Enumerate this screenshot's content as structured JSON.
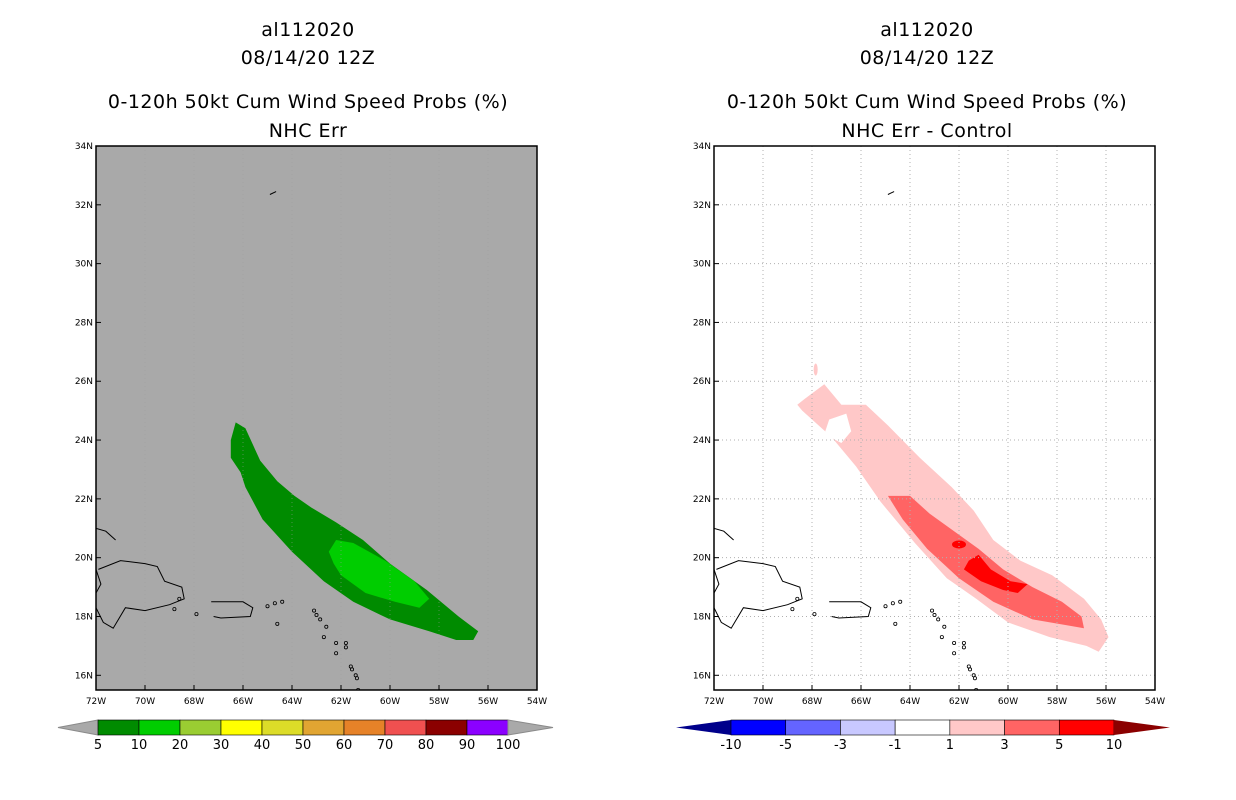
{
  "chart_data": [
    {
      "type": "heatmap",
      "storm_id": "al112020",
      "datetime": "08/14/20 12Z",
      "title": "0-120h 50kt Cum Wind Speed Probs (%)",
      "subtitle": "NHC Err",
      "background": "#a9a9a9",
      "grid": false,
      "lon_range": [
        -72,
        -54
      ],
      "lat_range": [
        15.5,
        34
      ],
      "x_ticks": [
        "72W",
        "70W",
        "68W",
        "66W",
        "64W",
        "62W",
        "60W",
        "58W",
        "56W",
        "54W"
      ],
      "y_ticks": [
        "16N",
        "18N",
        "20N",
        "22N",
        "24N",
        "26N",
        "28N",
        "30N",
        "32N",
        "34N"
      ],
      "contour_levels": [
        5,
        10,
        20,
        30,
        40,
        50,
        60,
        70,
        80,
        90,
        100
      ],
      "colorbar_labels": [
        "5",
        "10",
        "20",
        "30",
        "40",
        "50",
        "60",
        "70",
        "80",
        "90",
        "100"
      ],
      "colorbar_colors": [
        "#008b00",
        "#00cd00",
        "#9acd32",
        "#ffff00",
        "#dcdc28",
        "#e1a532",
        "#e68228",
        "#f05050",
        "#8b0000",
        "#8b00ff"
      ],
      "contours": [
        {
          "level": 5,
          "color": "#008b00",
          "lonlat": [
            [
              -66.3,
              24.6
            ],
            [
              -65.9,
              24.4
            ],
            [
              -65.3,
              23.3
            ],
            [
              -64.6,
              22.6
            ],
            [
              -63.9,
              22.1
            ],
            [
              -63.2,
              21.7
            ],
            [
              -62.2,
              21.2
            ],
            [
              -61.1,
              20.6
            ],
            [
              -60.0,
              19.8
            ],
            [
              -58.5,
              18.9
            ],
            [
              -57.2,
              18.0
            ],
            [
              -56.4,
              17.5
            ],
            [
              -56.6,
              17.2
            ],
            [
              -57.3,
              17.2
            ],
            [
              -58.4,
              17.5
            ],
            [
              -60.0,
              17.9
            ],
            [
              -61.5,
              18.5
            ],
            [
              -62.7,
              19.2
            ],
            [
              -64.0,
              20.2
            ],
            [
              -65.2,
              21.3
            ],
            [
              -65.9,
              22.4
            ],
            [
              -66.1,
              22.9
            ],
            [
              -66.5,
              23.4
            ],
            [
              -66.5,
              24.0
            ]
          ]
        },
        {
          "level": 10,
          "color": "#00cd00",
          "lonlat": [
            [
              -62.2,
              20.6
            ],
            [
              -61.5,
              20.5
            ],
            [
              -60.2,
              19.9
            ],
            [
              -59.0,
              19.2
            ],
            [
              -58.4,
              18.6
            ],
            [
              -58.8,
              18.3
            ],
            [
              -59.8,
              18.5
            ],
            [
              -61.0,
              18.8
            ],
            [
              -62.0,
              19.4
            ],
            [
              -62.3,
              19.8
            ],
            [
              -62.5,
              20.2
            ]
          ]
        }
      ],
      "land": "Hispaniola, Puerto Rico, Virgin Islands, Lesser Antilles, Bermuda (outlined)"
    },
    {
      "type": "heatmap",
      "storm_id": "al112020",
      "datetime": "08/14/20 12Z",
      "title": "0-120h 50kt Cum Wind Speed Probs (%)",
      "subtitle": "NHC Err - Control",
      "background": "#ffffff",
      "grid": true,
      "lon_range": [
        -72,
        -54
      ],
      "lat_range": [
        15.5,
        34
      ],
      "x_ticks": [
        "72W",
        "70W",
        "68W",
        "66W",
        "64W",
        "62W",
        "60W",
        "58W",
        "56W",
        "54W"
      ],
      "y_ticks": [
        "16N",
        "18N",
        "20N",
        "22N",
        "24N",
        "26N",
        "28N",
        "30N",
        "32N",
        "34N"
      ],
      "contour_levels": [
        -10,
        -5,
        -3,
        -1,
        1,
        3,
        5,
        10
      ],
      "colorbar_labels": [
        "-10",
        "-5",
        "-3",
        "-1",
        "1",
        "3",
        "5",
        "10"
      ],
      "colorbar_colors": [
        "#00008b",
        "#0000ff",
        "#6464ff",
        "#c8c8ff",
        "#ffffff",
        "#ffc8c8",
        "#ff6464",
        "#ff0000",
        "#8b0000"
      ],
      "contours": [
        {
          "level": 1,
          "color": "#ffc8c8",
          "lonlat": [
            [
              -68.3,
              25.4
            ],
            [
              -67.5,
              25.9
            ],
            [
              -66.8,
              25.2
            ],
            [
              -65.8,
              25.2
            ],
            [
              -64.9,
              24.5
            ],
            [
              -63.6,
              23.4
            ],
            [
              -62.3,
              22.4
            ],
            [
              -61.4,
              21.6
            ],
            [
              -60.6,
              20.6
            ],
            [
              -59.5,
              19.9
            ],
            [
              -58.2,
              19.4
            ],
            [
              -56.9,
              18.6
            ],
            [
              -56.2,
              17.9
            ],
            [
              -55.9,
              17.3
            ],
            [
              -56.3,
              16.8
            ],
            [
              -56.8,
              17.0
            ],
            [
              -58.3,
              17.3
            ],
            [
              -60.0,
              17.8
            ],
            [
              -61.3,
              18.6
            ],
            [
              -62.5,
              19.3
            ],
            [
              -63.8,
              20.5
            ],
            [
              -65.2,
              21.9
            ],
            [
              -66.2,
              23.1
            ],
            [
              -67.2,
              24.1
            ],
            [
              -68.4,
              25.0
            ],
            [
              -68.6,
              25.2
            ]
          ]
        },
        {
          "level": 3,
          "color": "#ff6464",
          "lonlat": [
            [
              -64.9,
              22.1
            ],
            [
              -64.0,
              22.1
            ],
            [
              -63.2,
              21.5
            ],
            [
              -62.2,
              20.9
            ],
            [
              -61.2,
              20.3
            ],
            [
              -60.2,
              19.6
            ],
            [
              -59.0,
              19.0
            ],
            [
              -57.8,
              18.5
            ],
            [
              -57.0,
              18.0
            ],
            [
              -56.9,
              17.6
            ],
            [
              -57.6,
              17.7
            ],
            [
              -59.0,
              17.9
            ],
            [
              -60.6,
              18.5
            ],
            [
              -62.0,
              19.3
            ],
            [
              -63.3,
              20.3
            ],
            [
              -64.3,
              21.3
            ]
          ]
        },
        {
          "level": 5,
          "color": "#ff0000",
          "lonlat": [
            [
              -61.2,
              20.1
            ],
            [
              -60.7,
              19.6
            ],
            [
              -59.9,
              19.2
            ],
            [
              -59.2,
              19.1
            ],
            [
              -59.6,
              18.8
            ],
            [
              -60.2,
              18.9
            ],
            [
              -61.1,
              19.2
            ],
            [
              -61.8,
              19.6
            ],
            [
              -61.6,
              19.9
            ]
          ]
        }
      ],
      "land": "Hispaniola, Puerto Rico, Virgin Islands, Lesser Antilles, Bermuda (outlined)"
    }
  ],
  "panels": [
    {
      "storm_id": "al112020",
      "datetime": "08/14/20 12Z",
      "title": "0-120h 50kt Cum Wind Speed Probs (%)",
      "subtitle": "NHC Err"
    },
    {
      "storm_id": "al112020",
      "datetime": "08/14/20 12Z",
      "title": "0-120h 50kt Cum Wind Speed Probs (%)",
      "subtitle": "NHC Err - Control"
    }
  ]
}
